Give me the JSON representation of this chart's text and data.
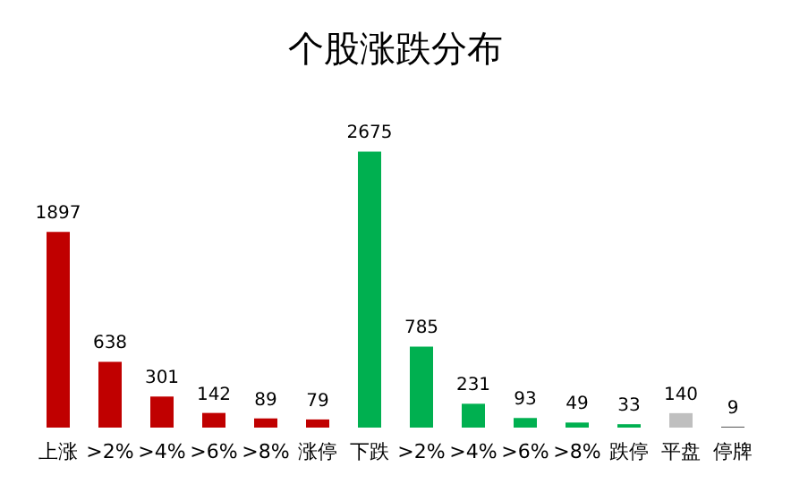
{
  "chart_data": {
    "type": "bar",
    "title": "个股涨跌分布",
    "categories": [
      "上涨",
      ">2%",
      ">4%",
      ">6%",
      ">8%",
      "涨停",
      "下跌",
      ">2%",
      ">4%",
      ">6%",
      ">8%",
      "跌停",
      "平盘",
      "停牌"
    ],
    "values": [
      1897,
      638,
      301,
      142,
      89,
      79,
      2675,
      785,
      231,
      93,
      49,
      33,
      140,
      9
    ],
    "colors": [
      "#c00000",
      "#c00000",
      "#c00000",
      "#c00000",
      "#c00000",
      "#c00000",
      "#00b050",
      "#00b050",
      "#00b050",
      "#00b050",
      "#00b050",
      "#00b050",
      "#bfbfbf",
      "#595959"
    ],
    "data_labels": true
  }
}
